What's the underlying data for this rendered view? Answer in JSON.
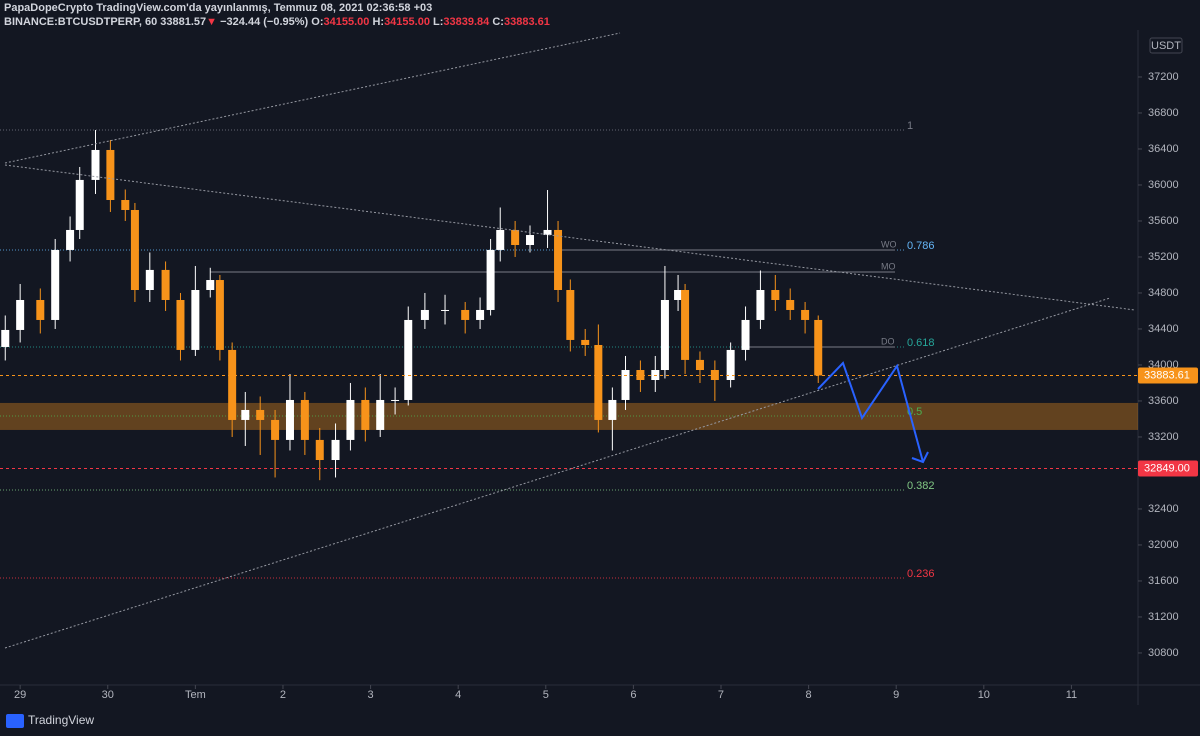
{
  "header": {
    "title": "PapaDopeCrypto TradingView.com'da yayınlanmış, Temmuz 08, 2021 02:36:58 +03",
    "symbol": "BINANCE:BTCUSDTPERP, 60",
    "last": "33881.57",
    "arrow": "▼",
    "change": "−324.44 (−0.95%)",
    "ohlc": [
      {
        "k": "O:",
        "v": "34155.00"
      },
      {
        "k": "H:",
        "v": "34155.00"
      },
      {
        "k": "L:",
        "v": "33839.84"
      },
      {
        "k": "C:",
        "v": "33883.61"
      }
    ]
  },
  "footer": {
    "brand": "TradingView"
  },
  "chart_data": {
    "type": "candlestick",
    "currency": "USDT",
    "up_color": "#ffffff",
    "down_color": "#f7931a",
    "x": [
      -0.17,
      0,
      0.23,
      0.4,
      0.57,
      0.68,
      0.86,
      1.03,
      1.2,
      1.31,
      1.48,
      1.66,
      1.83,
      2.0,
      2.17,
      2.28,
      2.42,
      2.57,
      2.74,
      2.91,
      3.08,
      3.25,
      3.42,
      3.6,
      3.77,
      3.94,
      4.11,
      4.28,
      4.43,
      4.62,
      4.85,
      5.08,
      5.25,
      5.37,
      5.48,
      5.65,
      5.82,
      6.02,
      6.14,
      6.28,
      6.45,
      6.6,
      6.76,
      6.91,
      7.08,
      7.25,
      7.36,
      7.51,
      7.59,
      7.76,
      7.93,
      8.11,
      8.28,
      8.45,
      8.62,
      8.79,
      8.96,
      9.11
    ],
    "open": [
      34200,
      34389,
      34722,
      34500,
      35278,
      35500,
      36056,
      36389,
      35833,
      35722,
      34833,
      35056,
      34722,
      34167,
      34833,
      34944,
      34167,
      33389,
      33500,
      33389,
      33167,
      33611,
      33167,
      32944,
      33167,
      33611,
      33278,
      33611,
      33611,
      34500,
      34611,
      34611,
      34500,
      34611,
      35278,
      35500,
      35333,
      35444,
      35500,
      34833,
      34278,
      34222,
      33389,
      33611,
      33944,
      33833,
      33944,
      34722,
      34833,
      34056,
      33944,
      33833,
      34167,
      34500,
      34833,
      34722,
      34611,
      34500
    ],
    "high": [
      34550,
      34900,
      34850,
      35400,
      35650,
      36200,
      36611,
      36500,
      35950,
      35800,
      35250,
      35150,
      34800,
      35100,
      35080,
      35000,
      34250,
      33700,
      33650,
      33500,
      33900,
      33700,
      33300,
      33350,
      33800,
      33750,
      33900,
      33750,
      34650,
      34800,
      34780,
      34700,
      34750,
      35400,
      35750,
      35600,
      35550,
      35944,
      35600,
      34950,
      34400,
      34450,
      33750,
      34100,
      34050,
      34100,
      35100,
      35000,
      34900,
      34150,
      34050,
      34250,
      34650,
      35050,
      35000,
      34850,
      34700,
      34550
    ],
    "low": [
      34050,
      34250,
      34350,
      34400,
      35150,
      35400,
      35900,
      35700,
      35600,
      34700,
      34700,
      34600,
      34050,
      34100,
      34750,
      34050,
      33200,
      33100,
      33000,
      32750,
      33050,
      33000,
      32720,
      32750,
      33050,
      33150,
      33200,
      33450,
      33550,
      34400,
      34450,
      34350,
      34400,
      34550,
      35150,
      35200,
      35250,
      35300,
      34700,
      34150,
      34100,
      33250,
      33050,
      33500,
      33700,
      33700,
      33850,
      34600,
      33900,
      33800,
      33600,
      33750,
      34050,
      34400,
      34600,
      34500,
      34350,
      33800
    ],
    "close": [
      34389,
      34722,
      34500,
      35278,
      35500,
      36056,
      36389,
      35833,
      35722,
      34833,
      35056,
      34722,
      34167,
      34833,
      34944,
      34167,
      33389,
      33500,
      33389,
      33167,
      33611,
      33167,
      32944,
      33167,
      33611,
      33278,
      33611,
      33611,
      34500,
      34611,
      34611,
      34500,
      34611,
      35278,
      35500,
      35333,
      35444,
      35500,
      34833,
      34278,
      34222,
      33389,
      33611,
      33944,
      33833,
      33944,
      34722,
      34833,
      34056,
      33944,
      33833,
      34167,
      34500,
      34833,
      34722,
      34611,
      34500,
      33883.61
    ],
    "xlim": [
      -0.23,
      12.76
    ],
    "xticks": [
      {
        "value": 0,
        "label": "29"
      },
      {
        "value": 1,
        "label": "30"
      },
      {
        "value": 2,
        "label": "Tem"
      },
      {
        "value": 3,
        "label": "2"
      },
      {
        "value": 4,
        "label": "3"
      },
      {
        "value": 5,
        "label": "4"
      },
      {
        "value": 6,
        "label": "5"
      },
      {
        "value": 7,
        "label": "6"
      },
      {
        "value": 8,
        "label": "7"
      },
      {
        "value": 9,
        "label": "8"
      },
      {
        "value": 10,
        "label": "9"
      },
      {
        "value": 11,
        "label": "10"
      },
      {
        "value": 12,
        "label": "11"
      }
    ],
    "ylim": [
      30444,
      37722
    ],
    "yticks": [
      30800,
      31200,
      31600,
      32000,
      32400,
      32800,
      33200,
      33600,
      34000,
      34400,
      34800,
      35200,
      35600,
      36000,
      36400,
      36800,
      37200
    ],
    "zone": {
      "from": 33278,
      "to": 33578,
      "color": "#f7931a"
    },
    "fib_levels": [
      {
        "price": 36611,
        "text": "1",
        "color": "#787b86"
      },
      {
        "price": 35278,
        "text": "0.786",
        "color": "#64b5f6"
      },
      {
        "price": 34200,
        "text": "0.618",
        "color": "#26a69a"
      },
      {
        "price": 33433,
        "text": "0.5",
        "color": "#4caf50"
      },
      {
        "price": 32611,
        "text": "0.382",
        "color": "#81c784"
      },
      {
        "price": 31633,
        "text": "0.236",
        "color": "#f23645"
      }
    ],
    "opens": [
      {
        "text": "WO",
        "price": 35278,
        "x_from": 6.11
      },
      {
        "text": "MO",
        "price": 35033,
        "x_from": 2.17
      },
      {
        "text": "DO",
        "price": 34200,
        "x_from": 8.28
      }
    ],
    "price_tags": [
      {
        "value": 33883.61,
        "label": "33883.61",
        "color": "#f7931a"
      },
      {
        "value": 32849,
        "label": "32849.00",
        "color": "#f23645"
      }
    ]
  }
}
